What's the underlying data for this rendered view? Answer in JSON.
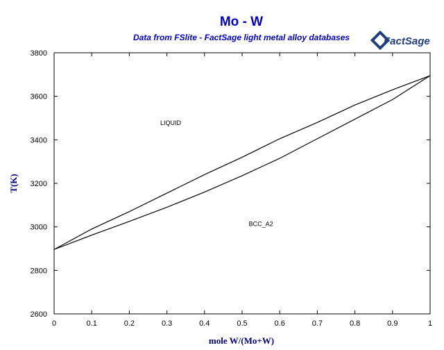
{
  "header": {
    "title": "Mo - W",
    "subtitle": "Data from FSlite - FactSage light metal alloy databases",
    "logo_text": "FactSage"
  },
  "colors": {
    "title": "#0000cc",
    "axis_label": "#000080",
    "curve": "#000000",
    "logo": "#1f3f7f"
  },
  "chart_data": {
    "type": "line",
    "xlabel": "mole W/(Mo+W)",
    "ylabel": "T(K)",
    "xlim": [
      0,
      1
    ],
    "ylim": [
      2600,
      3800
    ],
    "xticks": [
      0,
      0.1,
      0.2,
      0.3,
      0.4,
      0.5,
      0.6,
      0.7,
      0.8,
      0.9,
      1
    ],
    "xtick_labels": [
      "0",
      "0.1",
      "0.2",
      "0.3",
      "0.4",
      "0.5",
      "0.6",
      "0.7",
      "0.8",
      "0.9",
      "1"
    ],
    "yticks": [
      2600,
      2800,
      3000,
      3200,
      3400,
      3600,
      3800
    ],
    "ytick_labels": [
      "2600",
      "2800",
      "3000",
      "3200",
      "3400",
      "3600",
      "3800"
    ],
    "grid": false,
    "series": [
      {
        "x": [
          0,
          0.1,
          0.2,
          0.3,
          0.4,
          0.5,
          0.6,
          0.7,
          0.8,
          0.9,
          1
        ],
        "y": [
          2896,
          2990,
          3070,
          3155,
          3240,
          3320,
          3405,
          3480,
          3560,
          3630,
          3695
        ]
      },
      {
        "x": [
          0,
          0.1,
          0.2,
          0.3,
          0.4,
          0.5,
          0.6,
          0.7,
          0.8,
          0.9,
          1
        ],
        "y": [
          2896,
          2962,
          3025,
          3090,
          3160,
          3235,
          3315,
          3405,
          3495,
          3585,
          3695
        ]
      }
    ],
    "annotations": [
      {
        "text": "LIQUID",
        "x": 0.31,
        "y": 3468
      },
      {
        "text": "BCC_A2",
        "x": 0.55,
        "y": 3003
      }
    ]
  }
}
